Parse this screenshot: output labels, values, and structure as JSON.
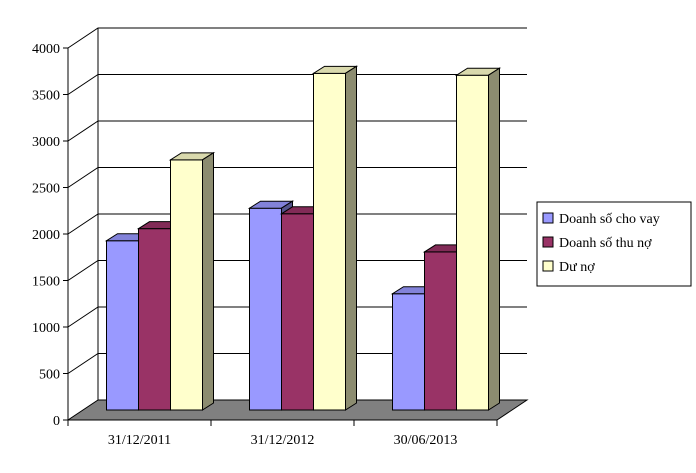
{
  "chart_data": {
    "type": "bar",
    "title": "",
    "xlabel": "",
    "ylabel": "",
    "categories": [
      "31/12/2011",
      "31/12/2012",
      "30/06/2013"
    ],
    "series": [
      {
        "name": "Doanh số cho vay",
        "values": [
          1820,
          2170,
          1250
        ],
        "color": "#9999ff"
      },
      {
        "name": "Doanh số thu nợ",
        "values": [
          1950,
          2110,
          1700
        ],
        "color": "#993366"
      },
      {
        "name": "Dư nợ",
        "values": [
          2690,
          3620,
          3600
        ],
        "color": "#ffffcc"
      }
    ],
    "ylim": [
      0,
      4000
    ],
    "yticks": [
      "0",
      "500",
      "1000",
      "1500",
      "2000",
      "2500",
      "3000",
      "3500",
      "4000"
    ],
    "grid": true,
    "style": "3d-clustered-bar",
    "legend_position": "right",
    "floor_color": "#808080"
  }
}
